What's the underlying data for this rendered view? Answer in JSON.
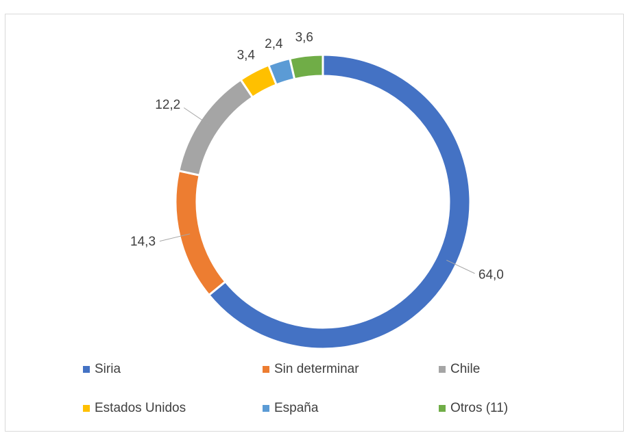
{
  "chart_data": {
    "type": "donut",
    "categories": [
      "Siria",
      "Sin determinar",
      "Chile",
      "Estados Unidos",
      "España",
      "Otros (11)"
    ],
    "values": [
      64.0,
      14.3,
      12.2,
      3.4,
      2.4,
      3.6
    ],
    "value_labels": [
      "64,0",
      "14,3",
      "12,2",
      "3,4",
      "2,4",
      "3,6"
    ],
    "colors": [
      "#4472c4",
      "#ed7d31",
      "#a5a5a5",
      "#ffc000",
      "#5b9bd5",
      "#70ad47"
    ],
    "legend": "bottom"
  }
}
